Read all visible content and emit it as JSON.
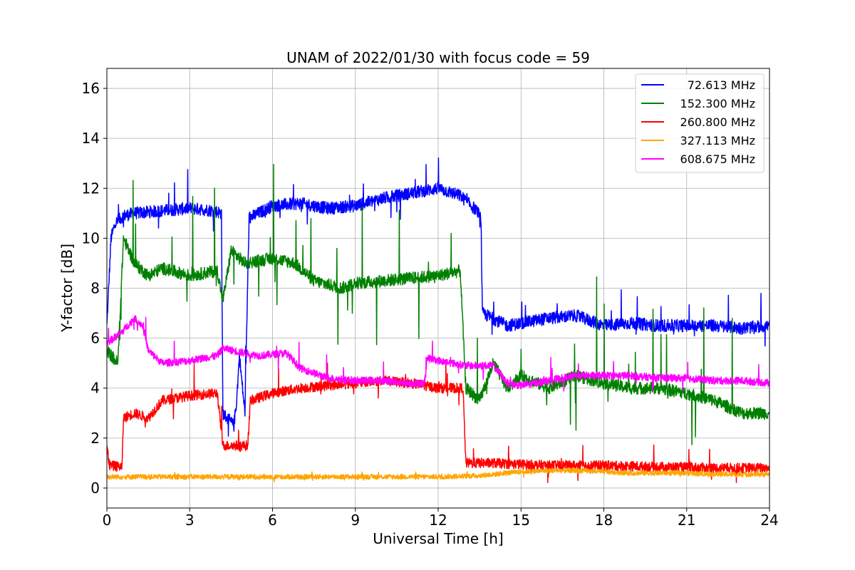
{
  "chart_data": {
    "type": "line",
    "title": "UNAM of 2022/01/30 with focus code = 59",
    "xlabel": "Universal Time [h]",
    "ylabel": "Y-factor [dB]",
    "xlim": [
      0,
      24
    ],
    "ylim": [
      -0.8,
      16.8
    ],
    "xticks": [
      0,
      3,
      6,
      9,
      12,
      15,
      18,
      21,
      24
    ],
    "yticks": [
      0,
      2,
      4,
      6,
      8,
      10,
      12,
      14,
      16
    ],
    "grid": true,
    "legend_position": "top-right",
    "series": [
      {
        "name": "72.613 MHz",
        "color": "#0000ff",
        "spread": 0.5,
        "noise": 0.3,
        "points": [
          [
            0,
            6.5
          ],
          [
            0.15,
            10.0
          ],
          [
            0.3,
            10.6
          ],
          [
            0.6,
            10.9
          ],
          [
            1.0,
            11.0
          ],
          [
            2.0,
            11.1
          ],
          [
            3.0,
            11.2
          ],
          [
            3.9,
            11.1
          ],
          [
            4.15,
            11.0
          ],
          [
            4.2,
            3.0
          ],
          [
            4.6,
            2.5
          ],
          [
            4.7,
            3.5
          ],
          [
            4.8,
            5.3
          ],
          [
            5.0,
            3.0
          ],
          [
            5.15,
            10.8
          ],
          [
            6.0,
            11.3
          ],
          [
            7.0,
            11.4
          ],
          [
            8.0,
            11.2
          ],
          [
            9.0,
            11.3
          ],
          [
            10.0,
            11.6
          ],
          [
            11.0,
            11.8
          ],
          [
            12.0,
            12.0
          ],
          [
            12.8,
            11.7
          ],
          [
            13.4,
            11.1
          ],
          [
            13.55,
            10.8
          ],
          [
            13.6,
            7.0
          ],
          [
            14.5,
            6.5
          ],
          [
            15.0,
            6.6
          ],
          [
            16.0,
            6.8
          ],
          [
            17.0,
            6.9
          ],
          [
            18.0,
            6.5
          ],
          [
            19.0,
            6.6
          ],
          [
            20.0,
            6.5
          ],
          [
            21.0,
            6.5
          ],
          [
            22.0,
            6.5
          ],
          [
            23.0,
            6.4
          ],
          [
            24.0,
            6.5
          ]
        ]
      },
      {
        "name": "152.300 MHz",
        "color": "#008000",
        "spread": 0.5,
        "noise": 0.9,
        "points": [
          [
            0,
            5.5
          ],
          [
            0.4,
            5.0
          ],
          [
            0.6,
            10.0
          ],
          [
            1.0,
            9.0
          ],
          [
            1.5,
            8.5
          ],
          [
            2.0,
            8.8
          ],
          [
            3.0,
            8.5
          ],
          [
            4.0,
            8.7
          ],
          [
            4.2,
            7.5
          ],
          [
            4.5,
            9.5
          ],
          [
            5.0,
            9.0
          ],
          [
            6.0,
            9.2
          ],
          [
            6.8,
            9.0
          ],
          [
            7.5,
            8.3
          ],
          [
            8.5,
            8.0
          ],
          [
            9.0,
            8.2
          ],
          [
            10.0,
            8.3
          ],
          [
            11.0,
            8.4
          ],
          [
            12.0,
            8.5
          ],
          [
            12.8,
            8.7
          ],
          [
            13.0,
            4.0
          ],
          [
            13.5,
            3.5
          ],
          [
            14.0,
            5.0
          ],
          [
            14.5,
            4.0
          ],
          [
            15.0,
            4.5
          ],
          [
            16.0,
            4.0
          ],
          [
            17.0,
            4.5
          ],
          [
            18.0,
            4.2
          ],
          [
            19.0,
            4.0
          ],
          [
            20.0,
            4.0
          ],
          [
            21.0,
            3.8
          ],
          [
            22.0,
            3.5
          ],
          [
            23.0,
            3.0
          ],
          [
            24.0,
            3.0
          ]
        ]
      },
      {
        "name": "260.800 MHz",
        "color": "#ff0000",
        "spread": 0.4,
        "noise": 0.25,
        "points": [
          [
            0,
            1.6
          ],
          [
            0.1,
            0.9
          ],
          [
            0.55,
            0.85
          ],
          [
            0.6,
            2.8
          ],
          [
            1.0,
            3.0
          ],
          [
            1.5,
            2.8
          ],
          [
            2.0,
            3.5
          ],
          [
            3.0,
            3.7
          ],
          [
            4.0,
            3.8
          ],
          [
            4.2,
            1.7
          ],
          [
            5.1,
            1.7
          ],
          [
            5.2,
            3.5
          ],
          [
            6.0,
            3.8
          ],
          [
            7.0,
            4.0
          ],
          [
            8.0,
            4.1
          ],
          [
            9.0,
            4.2
          ],
          [
            10.0,
            4.3
          ],
          [
            11.0,
            4.2
          ],
          [
            12.0,
            4.0
          ],
          [
            12.9,
            4.0
          ],
          [
            13.0,
            1.0
          ],
          [
            14.0,
            1.0
          ],
          [
            15.0,
            0.95
          ],
          [
            16.0,
            0.9
          ],
          [
            18.0,
            0.9
          ],
          [
            20.0,
            0.85
          ],
          [
            22.0,
            0.8
          ],
          [
            24.0,
            0.8
          ]
        ]
      },
      {
        "name": "327.113 MHz",
        "color": "#ffa500",
        "spread": 0.2,
        "noise": 0.05,
        "points": [
          [
            0,
            0.45
          ],
          [
            3.0,
            0.45
          ],
          [
            6.0,
            0.45
          ],
          [
            9.0,
            0.45
          ],
          [
            12.0,
            0.45
          ],
          [
            13.5,
            0.5
          ],
          [
            14.0,
            0.55
          ],
          [
            15.0,
            0.65
          ],
          [
            16.0,
            0.7
          ],
          [
            17.0,
            0.7
          ],
          [
            18.0,
            0.65
          ],
          [
            19.0,
            0.6
          ],
          [
            20.0,
            0.6
          ],
          [
            21.0,
            0.6
          ],
          [
            22.0,
            0.55
          ],
          [
            24.0,
            0.55
          ]
        ]
      },
      {
        "name": "608.675 MHz",
        "color": "#ff00ff",
        "spread": 0.3,
        "noise": 0.2,
        "points": [
          [
            0,
            5.8
          ],
          [
            0.5,
            6.2
          ],
          [
            1.0,
            6.8
          ],
          [
            1.3,
            6.5
          ],
          [
            1.5,
            5.5
          ],
          [
            2.0,
            5.0
          ],
          [
            3.0,
            5.1
          ],
          [
            4.0,
            5.3
          ],
          [
            4.2,
            5.6
          ],
          [
            5.0,
            5.4
          ],
          [
            5.5,
            5.3
          ],
          [
            6.5,
            5.4
          ],
          [
            7.0,
            4.8
          ],
          [
            8.0,
            4.4
          ],
          [
            9.0,
            4.3
          ],
          [
            10.0,
            4.3
          ],
          [
            11.0,
            4.2
          ],
          [
            11.5,
            4.2
          ],
          [
            11.6,
            5.2
          ],
          [
            12.0,
            5.1
          ],
          [
            13.0,
            4.9
          ],
          [
            14.0,
            4.9
          ],
          [
            14.5,
            4.2
          ],
          [
            15.0,
            4.1
          ],
          [
            16.0,
            4.3
          ],
          [
            17.0,
            4.5
          ],
          [
            18.0,
            4.5
          ],
          [
            19.0,
            4.5
          ],
          [
            20.0,
            4.4
          ],
          [
            21.0,
            4.4
          ],
          [
            22.0,
            4.3
          ],
          [
            23.0,
            4.3
          ],
          [
            24.0,
            4.2
          ]
        ]
      }
    ]
  }
}
